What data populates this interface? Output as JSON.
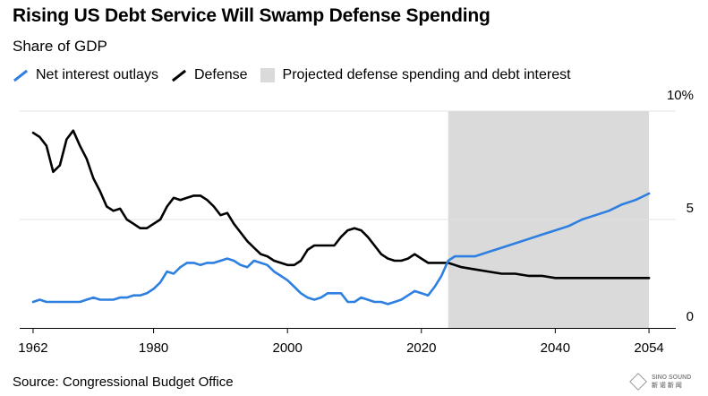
{
  "chart_data": {
    "type": "line",
    "title": "Rising US Debt Service Will Swamp Defense Spending",
    "subtitle": "Share of GDP",
    "source": "Source: Congressional Budget Office",
    "xlim": [
      1960,
      2058
    ],
    "ylim": [
      0,
      10
    ],
    "x_ticks": [
      1962,
      1980,
      2000,
      2020,
      2040,
      2054
    ],
    "x_tick_labels": [
      "1962",
      "1980",
      "2000",
      "2020",
      "2040",
      "2054"
    ],
    "y_ticks": [
      0,
      5,
      10
    ],
    "y_tick_labels": [
      "0",
      "5",
      "10%"
    ],
    "projection_range": [
      2024,
      2054
    ],
    "legend": {
      "net_interest": "Net interest outlays",
      "defense": "Defense",
      "projection": "Projected defense spending and debt interest"
    },
    "colors": {
      "net_interest": "#2d7fe0",
      "defense": "#000000",
      "projection": "#dadada",
      "grid": "#e3e3e3"
    },
    "series": [
      {
        "name": "Net interest outlays",
        "x": [
          1962,
          1963,
          1964,
          1965,
          1966,
          1967,
          1968,
          1969,
          1970,
          1971,
          1972,
          1973,
          1974,
          1975,
          1976,
          1977,
          1978,
          1979,
          1980,
          1981,
          1982,
          1983,
          1984,
          1985,
          1986,
          1987,
          1988,
          1989,
          1990,
          1991,
          1992,
          1993,
          1994,
          1995,
          1996,
          1997,
          1998,
          1999,
          2000,
          2001,
          2002,
          2003,
          2004,
          2005,
          2006,
          2007,
          2008,
          2009,
          2010,
          2011,
          2012,
          2013,
          2014,
          2015,
          2016,
          2017,
          2018,
          2019,
          2020,
          2021,
          2022,
          2023,
          2024,
          2025,
          2026,
          2027,
          2028,
          2030,
          2032,
          2034,
          2036,
          2038,
          2040,
          2042,
          2044,
          2046,
          2048,
          2050,
          2052,
          2054
        ],
        "values": [
          1.2,
          1.3,
          1.2,
          1.2,
          1.2,
          1.2,
          1.2,
          1.2,
          1.3,
          1.4,
          1.3,
          1.3,
          1.3,
          1.4,
          1.4,
          1.5,
          1.5,
          1.6,
          1.8,
          2.1,
          2.6,
          2.5,
          2.8,
          3.0,
          3.0,
          2.9,
          3.0,
          3.0,
          3.1,
          3.2,
          3.1,
          2.9,
          2.8,
          3.1,
          3.0,
          2.9,
          2.6,
          2.4,
          2.2,
          1.9,
          1.6,
          1.4,
          1.3,
          1.4,
          1.6,
          1.6,
          1.6,
          1.2,
          1.2,
          1.4,
          1.3,
          1.2,
          1.2,
          1.1,
          1.2,
          1.3,
          1.5,
          1.7,
          1.6,
          1.5,
          1.9,
          2.4,
          3.1,
          3.3,
          3.3,
          3.3,
          3.3,
          3.5,
          3.7,
          3.9,
          4.1,
          4.3,
          4.5,
          4.7,
          5.0,
          5.2,
          5.4,
          5.7,
          5.9,
          6.2
        ]
      },
      {
        "name": "Defense",
        "x": [
          1962,
          1963,
          1964,
          1965,
          1966,
          1967,
          1968,
          1969,
          1970,
          1971,
          1972,
          1973,
          1974,
          1975,
          1976,
          1977,
          1978,
          1979,
          1980,
          1981,
          1982,
          1983,
          1984,
          1985,
          1986,
          1987,
          1988,
          1989,
          1990,
          1991,
          1992,
          1993,
          1994,
          1995,
          1996,
          1997,
          1998,
          1999,
          2000,
          2001,
          2002,
          2003,
          2004,
          2005,
          2006,
          2007,
          2008,
          2009,
          2010,
          2011,
          2012,
          2013,
          2014,
          2015,
          2016,
          2017,
          2018,
          2019,
          2020,
          2021,
          2022,
          2023,
          2024,
          2026,
          2028,
          2030,
          2032,
          2034,
          2036,
          2038,
          2040,
          2044,
          2048,
          2052,
          2054
        ],
        "values": [
          9.0,
          8.8,
          8.4,
          7.2,
          7.5,
          8.7,
          9.1,
          8.4,
          7.8,
          6.9,
          6.3,
          5.6,
          5.4,
          5.5,
          5.0,
          4.8,
          4.6,
          4.6,
          4.8,
          5.0,
          5.6,
          6.0,
          5.9,
          6.0,
          6.1,
          6.1,
          5.9,
          5.6,
          5.2,
          5.3,
          4.8,
          4.4,
          4.0,
          3.7,
          3.4,
          3.3,
          3.1,
          3.0,
          2.9,
          2.9,
          3.1,
          3.6,
          3.8,
          3.8,
          3.8,
          3.8,
          4.2,
          4.5,
          4.6,
          4.5,
          4.2,
          3.8,
          3.4,
          3.2,
          3.1,
          3.1,
          3.2,
          3.4,
          3.2,
          3.0,
          3.0,
          3.0,
          3.0,
          2.8,
          2.7,
          2.6,
          2.5,
          2.5,
          2.4,
          2.4,
          2.3,
          2.3,
          2.3,
          2.3,
          2.3
        ]
      }
    ]
  },
  "watermark": {
    "brand": "SINO SOUND",
    "sub": "新 诺 新 闻"
  }
}
